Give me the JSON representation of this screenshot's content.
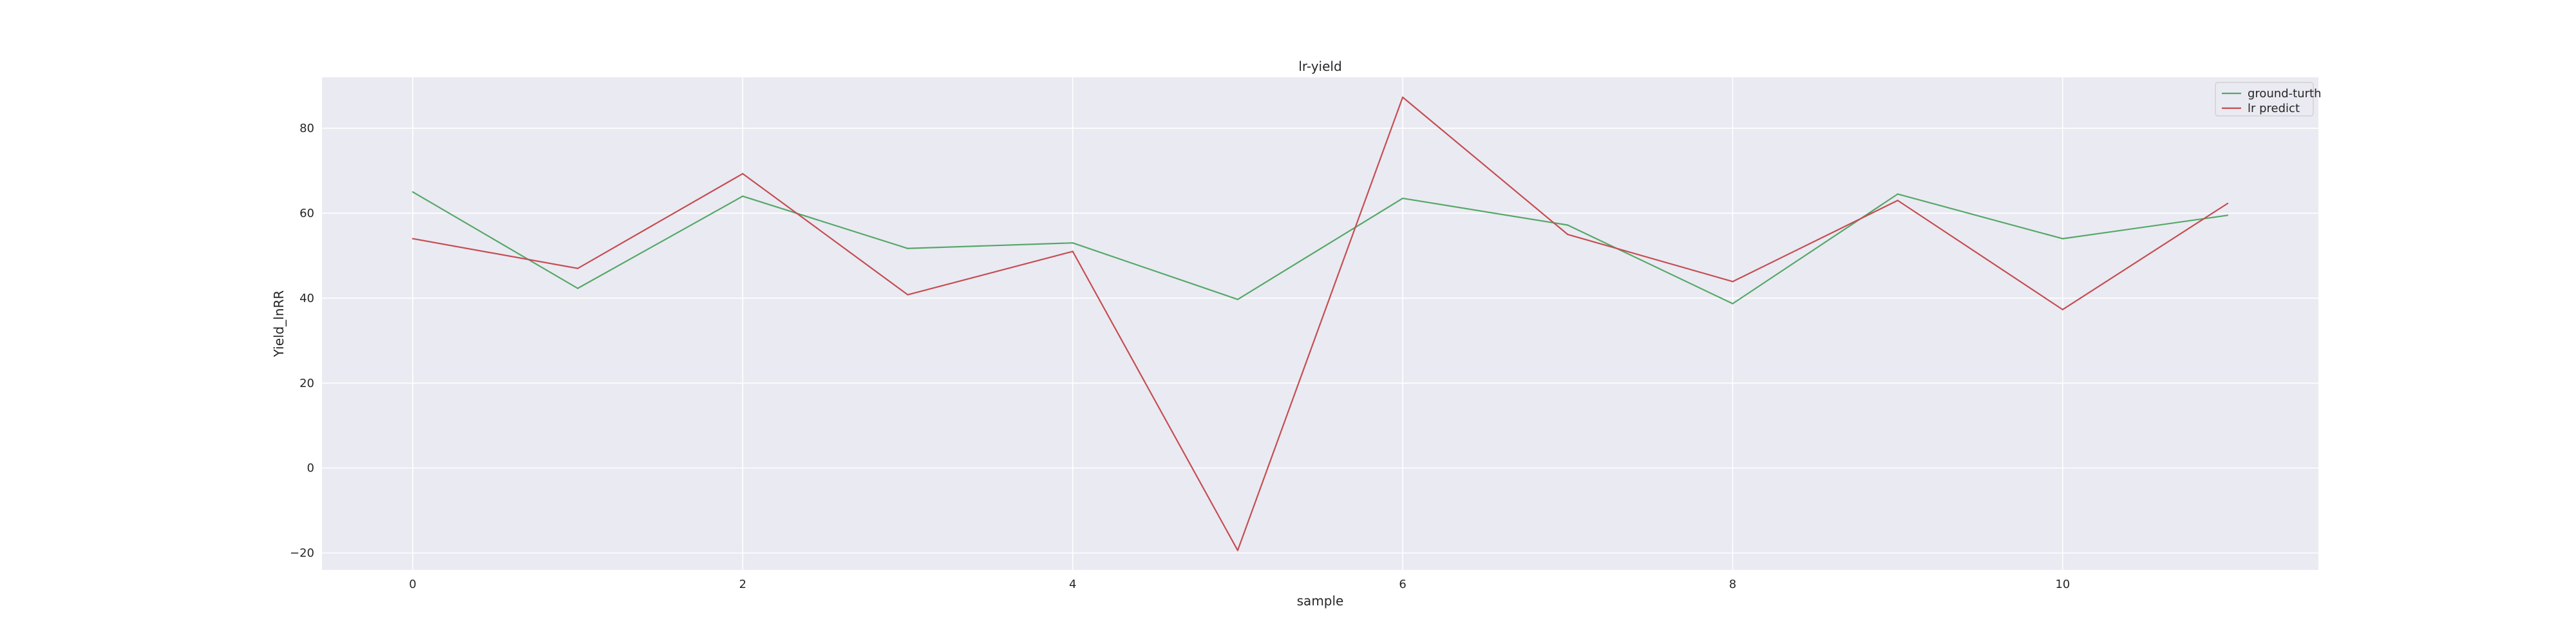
{
  "chart_data": {
    "type": "line",
    "title": "lr-yield",
    "xlabel": "sample",
    "ylabel": "Yield_lnRR",
    "x": [
      0,
      1,
      2,
      3,
      4,
      5,
      6,
      7,
      8,
      9,
      10,
      11
    ],
    "xticks": [
      0,
      2,
      4,
      6,
      8,
      10
    ],
    "yticks": [
      -20,
      0,
      20,
      40,
      60,
      80
    ],
    "xlim": [
      -0.55,
      11.55
    ],
    "ylim": [
      -24,
      92
    ],
    "grid": true,
    "legend_position": "top-right",
    "series": [
      {
        "name": "ground-turth",
        "color": "#55a868",
        "values": [
          65,
          42.3,
          64,
          51.7,
          53,
          39.7,
          63.5,
          57.2,
          38.7,
          64.5,
          54,
          59.5
        ]
      },
      {
        "name": "lr predict",
        "color": "#c44e52",
        "values": [
          54,
          47,
          69.3,
          40.8,
          51,
          -19.4,
          87.3,
          55,
          43.9,
          63,
          37.3,
          62.3
        ]
      }
    ]
  }
}
